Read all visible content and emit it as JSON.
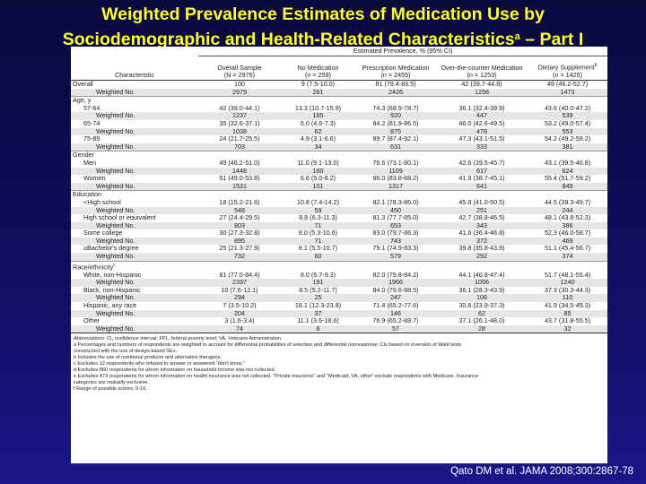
{
  "slide": {
    "title_line1": "Weighted Prevalence Estimates of Medication Use by",
    "title_line2": "Sociodemographic and Health-Related Characteristics",
    "title_sup": "a",
    "title_line2_suffix": " – Part I",
    "citation": "Qato DM et al. JAMA 2008;300:2867-78"
  },
  "table": {
    "group_header": "Estimated Prevalence, % (95% CI)",
    "columns": [
      {
        "label": "Characteristic",
        "sub": ""
      },
      {
        "label": "Overall Sample",
        "sub": "(N = 2976)"
      },
      {
        "label": "No Medication",
        "sub": "(n = 259)"
      },
      {
        "label": "Prescription Medication",
        "sub": "(n = 2455)"
      },
      {
        "label": "Over-the-counter Medication",
        "sub": "(n = 1253)"
      },
      {
        "label": "Dietary Supplement",
        "sub": "(n = 1425)",
        "sup": "b"
      }
    ],
    "rows": [
      {
        "type": "data",
        "label": "Overall",
        "values": [
          "100",
          "9 (7.5-10.0)",
          "81 (79.4-83.5)",
          "42 (39.7-44.8)",
          "49 (46.2-52.7)"
        ]
      },
      {
        "type": "weighted",
        "label": "Weighted No.",
        "values": [
          "2979",
          "261",
          "2426",
          "1258",
          "1473"
        ]
      },
      {
        "type": "group",
        "label": "Age, y",
        "values": [
          "",
          "",
          "",
          "",
          ""
        ]
      },
      {
        "type": "sub",
        "label": "57-64",
        "values": [
          "42 (39.0-44.1)",
          "13.3 (10.7-15.9)",
          "74.3 (69.9-78.7)",
          "36.1 (32.4-39.9)",
          "43.6 (40.0-47.2)"
        ]
      },
      {
        "type": "weighted",
        "label": "Weighted No.",
        "values": [
          "1237",
          "165",
          "920",
          "447",
          "539"
        ]
      },
      {
        "type": "sub",
        "label": "65-74",
        "values": [
          "35 (32.6-37.1)",
          "6.0 (4.6-7.3)",
          "84.2 (81.9-86.5)",
          "46.0 (42.6-49.5)",
          "53.2 (49.0-57.4)"
        ]
      },
      {
        "type": "weighted",
        "label": "Weighted No.",
        "values": [
          "1038",
          "62",
          "875",
          "478",
          "553"
        ]
      },
      {
        "type": "sub",
        "label": "75-85",
        "values": [
          "24 (21.7-25.5)",
          "4.9 (3.1-6.6)",
          "89.7 (87.4-92.1)",
          "47.3 (43.1-51.5)",
          "54.2 (49.2-59.2)"
        ]
      },
      {
        "type": "weighted",
        "label": "Weighted No.",
        "values": [
          "703",
          "34",
          "631",
          "333",
          "381"
        ]
      },
      {
        "type": "group",
        "label": "Gender",
        "values": [
          "",
          "",
          "",
          "",
          ""
        ]
      },
      {
        "type": "sub",
        "label": "Men",
        "values": [
          "49 (46.2-51.0)",
          "11.0 (9.1-13.0)",
          "76.6 (73.1-80.1)",
          "42.6 (39.5-45.7)",
          "43.1 (39.5-46.8)"
        ]
      },
      {
        "type": "weighted",
        "label": "Weighted No.",
        "values": [
          "1448",
          "160",
          "1109",
          "617",
          "624"
        ]
      },
      {
        "type": "sub",
        "label": "Women",
        "values": [
          "51 (49.0-53.8)",
          "6.6 (5.0-8.2)",
          "86.0 (83.8-88.2)",
          "41.9 (38.7-45.1)",
          "55.4 (51.7-59.2)"
        ]
      },
      {
        "type": "weighted",
        "label": "Weighted No.",
        "values": [
          "1531",
          "101",
          "1317",
          "641",
          "849"
        ]
      },
      {
        "type": "group",
        "label": "Education",
        "values": [
          "",
          "",
          "",
          "",
          ""
        ]
      },
      {
        "type": "sub",
        "label": "<High school",
        "values": [
          "18 (15.2-21.6)",
          "10.8 (7.4-14.2)",
          "82.1 (78.3-86.0)",
          "45.8 (41.0-50.5)",
          "44.5 (39.3-49.7)"
        ]
      },
      {
        "type": "weighted",
        "label": "Weighted No.",
        "values": [
          "548",
          "59",
          "450",
          "251",
          "244"
        ]
      },
      {
        "type": "sub",
        "label": "High school or equivalent",
        "values": [
          "27 (24.4-29.5)",
          "8.8 (6.3-11.3)",
          "81.3 (77.7-85.0)",
          "42.7 (38.8-46.5)",
          "48.1 (43.8-52.3)"
        ]
      },
      {
        "type": "weighted",
        "label": "Weighted No.",
        "values": [
          "803",
          "71",
          "653",
          "343",
          "386"
        ]
      },
      {
        "type": "sub",
        "label": "Some college",
        "values": [
          "30 (27.3-32.8)",
          "8.0 (5.3-10.6)",
          "83.0 (79.7-86.3)",
          "41.6 (36.4-46.8)",
          "52.3 (46.0-58.7)"
        ]
      },
      {
        "type": "weighted",
        "label": "Weighted No.",
        "values": [
          "895",
          "71",
          "743",
          "372",
          "469"
        ]
      },
      {
        "type": "sub",
        "label": "≥Bachelor's degree",
        "values": [
          "25 (21.3-27.9)",
          "8.1 (5.5-10.7)",
          "79.1 (74.9-83.3)",
          "39.8 (35.8-43.9)",
          "51.1 (45.4-56.7)"
        ]
      },
      {
        "type": "weighted",
        "label": "Weighted No.",
        "values": [
          "732",
          "60",
          "579",
          "292",
          "374"
        ]
      },
      {
        "type": "group",
        "label": "Race/ethnicity",
        "sup": "c",
        "values": [
          "",
          "",
          "",
          "",
          ""
        ]
      },
      {
        "type": "sub",
        "label": "White, non-Hispanic",
        "values": [
          "81 (77.0-84.4)",
          "8.0 (6.7-9.3)",
          "82.0 (79.8-84.2)",
          "44.1 (40.8-47.4)",
          "51.7 (48.1-55.4)"
        ]
      },
      {
        "type": "weighted",
        "label": "Weighted No.",
        "values": [
          "2397",
          "191",
          "1966",
          "1056",
          "1240"
        ]
      },
      {
        "type": "sub",
        "label": "Black, non-Hispanic",
        "values": [
          "10 (7.6-12.1)",
          "8.5 (5.2-11.7)",
          "84.0 (79.6-88.5)",
          "36.1 (28.3-43.9)",
          "37.3 (30.3-44.3)"
        ]
      },
      {
        "type": "weighted",
        "label": "Weighted No.",
        "values": [
          "294",
          "25",
          "247",
          "106",
          "110"
        ]
      },
      {
        "type": "sub",
        "label": "Hispanic, any race",
        "values": [
          "7 (3.5-10.2)",
          "18.1 (12.3-23.8)",
          "71.4 (65.2-77.6)",
          "30.6 (23.9-37.3)",
          "41.9 (34.5-49.3)"
        ]
      },
      {
        "type": "weighted",
        "label": "Weighted No.",
        "values": [
          "204",
          "37",
          "146",
          "62",
          "85"
        ]
      },
      {
        "type": "sub",
        "label": "Other",
        "values": [
          "3 (1.6-3.4)",
          "11.1 (3.6-18.6)",
          "76.9 (65.2-88.7)",
          "37.1 (26.1-48.0)",
          "43.7 (31.8-55.5)"
        ]
      },
      {
        "type": "weighted",
        "label": "Weighted No.",
        "values": [
          "74",
          "8",
          "57",
          "28",
          "32"
        ]
      }
    ],
    "footnotes": [
      "Abbreviations: CI, confidence interval; FPL, federal poverty level; VA, Veterans Administration.",
      "a Percentages and numbers of respondents are weighted to account for differential probabilities of selection and differential nonresponse; CIs based on inversion of Wald tests",
      "   constructed with the use of design-based SEs.",
      "b Includes the use of nutritional products and alternative therapies.",
      "c Excludes 12 respondents who refused to answer or answered \"don't know.\"",
      "d Excludes 860 respondents for whom information on household income was not collected.",
      "e Excludes 473 respondents for whom information on health insurance was not collected. \"Private insurance\" and \"Medicaid, VA, other\" exclude respondents with Medicare. Insurance",
      "   categories are mutually exclusive.",
      "f Range of possible scores, 0-10."
    ]
  }
}
